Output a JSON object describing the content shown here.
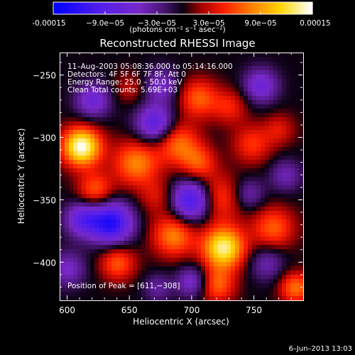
{
  "colorbar": {
    "min": -0.00015,
    "max": 0.00015,
    "tick_labels": [
      "-0.00015",
      "−9.0e−05",
      "−3.0e−05",
      "3.0e−05",
      "9.0e−05",
      "0.00015"
    ],
    "tick_values": [
      -0.00015,
      -9e-05,
      -3e-05,
      3e-05,
      9e-05,
      0.00015
    ],
    "unit_label": "(photons cm⁻² s⁻¹ asec⁻²)"
  },
  "title": "Reconstructed RHESSI Image",
  "annotations": {
    "time_range": "11–Aug–2003 05:08:36.000 to 05:14:16.000",
    "detectors": "Detectors: 4F 5F 6F 7F 8F, Att 0",
    "energy_range": "Energy Range: 25.0 – 50.0 keV",
    "clean_counts": "Clean     Total counts: 5.69E+03",
    "peak_position": "Position of Peak = [611,−308]"
  },
  "axes": {
    "xlabel": "Heliocentric X (arcsec)",
    "ylabel": "Heliocentric Y (arcsec)",
    "xlim": [
      594,
      789
    ],
    "ylim": [
      -430,
      -232
    ],
    "x_ticks": [
      600,
      650,
      700,
      750
    ],
    "x_tick_labels": [
      "600",
      "650",
      "700",
      "750"
    ],
    "y_ticks": [
      -250,
      -300,
      -350,
      -400
    ],
    "y_tick_labels": [
      "−250",
      "−300",
      "−350",
      "−400"
    ]
  },
  "timestamp": "6–Jun–2013 13:03",
  "chart_data": {
    "type": "heatmap",
    "title": "Reconstructed RHESSI Image",
    "xlabel": "Heliocentric X (arcsec)",
    "ylabel": "Heliocentric Y (arcsec)",
    "xlim": [
      594,
      789
    ],
    "ylim": [
      -430,
      -232
    ],
    "colormap": "blue-purple-red-yellow-white",
    "peak": {
      "x": 611,
      "y": -308
    },
    "blobs": [
      {
        "x": 611,
        "y": -307,
        "value": 1.0,
        "sigma": 11
      },
      {
        "x": 655,
        "y": -320,
        "value": 0.55,
        "sigma": 13
      },
      {
        "x": 622,
        "y": -342,
        "value": 0.45,
        "sigma": 10
      },
      {
        "x": 688,
        "y": -304,
        "value": 0.5,
        "sigma": 12
      },
      {
        "x": 705,
        "y": -268,
        "value": 0.45,
        "sigma": 11
      },
      {
        "x": 730,
        "y": -275,
        "value": 0.3,
        "sigma": 10
      },
      {
        "x": 748,
        "y": -305,
        "value": 0.35,
        "sigma": 11
      },
      {
        "x": 770,
        "y": -293,
        "value": 0.25,
        "sigma": 9
      },
      {
        "x": 720,
        "y": -348,
        "value": 0.45,
        "sigma": 13
      },
      {
        "x": 705,
        "y": -320,
        "value": 0.4,
        "sigma": 10
      },
      {
        "x": 672,
        "y": -347,
        "value": 0.25,
        "sigma": 10
      },
      {
        "x": 685,
        "y": -378,
        "value": 0.55,
        "sigma": 12
      },
      {
        "x": 725,
        "y": -388,
        "value": 0.9,
        "sigma": 12
      },
      {
        "x": 765,
        "y": -372,
        "value": 0.45,
        "sigma": 12
      },
      {
        "x": 640,
        "y": -400,
        "value": 0.45,
        "sigma": 10
      },
      {
        "x": 720,
        "y": -418,
        "value": 0.45,
        "sigma": 10
      },
      {
        "x": 783,
        "y": -420,
        "value": 0.5,
        "sigma": 9
      },
      {
        "x": 650,
        "y": -260,
        "value": 0.2,
        "sigma": 9
      },
      {
        "x": 670,
        "y": -289,
        "value": -0.6,
        "sigma": 11
      },
      {
        "x": 675,
        "y": -258,
        "value": -0.35,
        "sigma": 10
      },
      {
        "x": 700,
        "y": -350,
        "value": -0.8,
        "sigma": 12
      },
      {
        "x": 635,
        "y": -368,
        "value": -0.85,
        "sigma": 12
      },
      {
        "x": 612,
        "y": -365,
        "value": -0.55,
        "sigma": 10
      },
      {
        "x": 620,
        "y": -270,
        "value": -0.45,
        "sigma": 10
      },
      {
        "x": 755,
        "y": -258,
        "value": -0.45,
        "sigma": 10
      },
      {
        "x": 775,
        "y": -330,
        "value": -0.3,
        "sigma": 9
      },
      {
        "x": 745,
        "y": -345,
        "value": -0.3,
        "sigma": 9
      },
      {
        "x": 760,
        "y": -400,
        "value": -0.3,
        "sigma": 10
      },
      {
        "x": 700,
        "y": -415,
        "value": -0.4,
        "sigma": 9
      },
      {
        "x": 672,
        "y": -420,
        "value": -0.25,
        "sigma": 8
      },
      {
        "x": 600,
        "y": -405,
        "value": -0.35,
        "sigma": 10
      }
    ]
  }
}
